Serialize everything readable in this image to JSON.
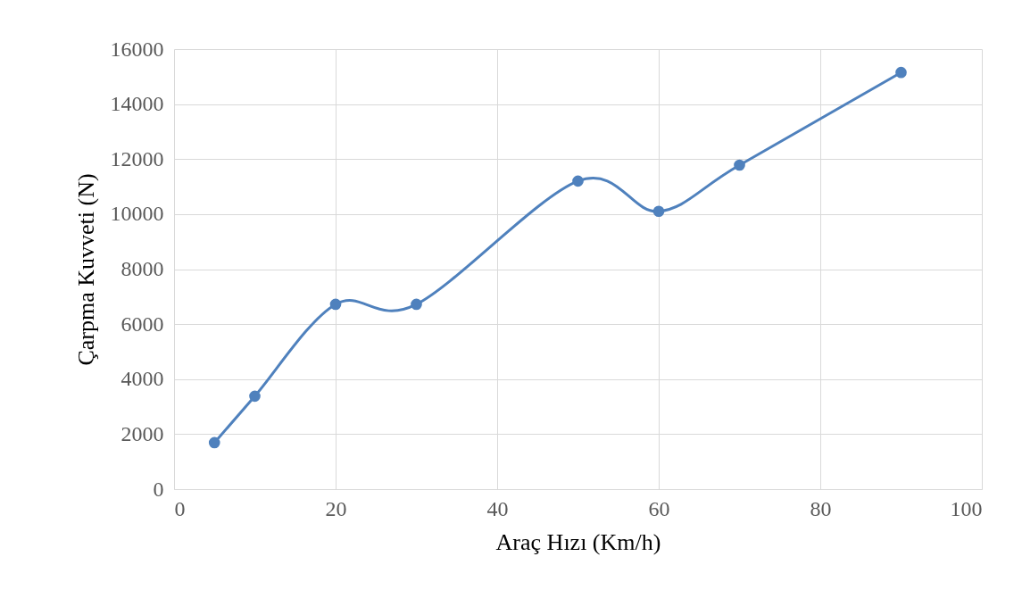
{
  "chart_data": {
    "type": "line",
    "xlabel": "Araç Hızı (Km/h)",
    "ylabel": "Çarpma Kuvveti (N)",
    "x": [
      5,
      10,
      20,
      30,
      50,
      60,
      70,
      90
    ],
    "series": [
      {
        "color": "#4f81bd",
        "values": [
          1690,
          3380,
          6720,
          6720,
          11200,
          10100,
          11780,
          15150
        ]
      }
    ],
    "xlim": [
      0,
      100
    ],
    "xticks": [
      0,
      20,
      40,
      60,
      80,
      100
    ],
    "ylim": [
      0,
      16000
    ],
    "yticks": [
      0,
      2000,
      4000,
      6000,
      8000,
      10000,
      12000,
      14000,
      16000
    ],
    "grid": true,
    "marker": "circle",
    "line_style": "solid",
    "legend": false
  }
}
